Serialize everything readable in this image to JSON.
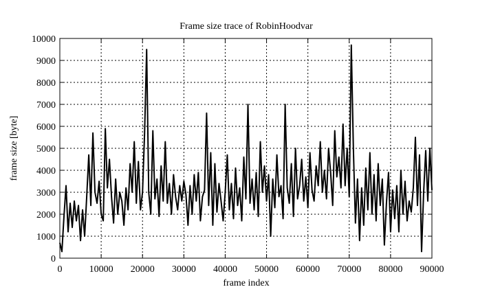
{
  "chart_data": {
    "type": "line",
    "title": "Frame size trace of RobinHoodvar",
    "xlabel": "frame index",
    "ylabel": "frame size [byte]",
    "x": [
      0,
      500,
      1000,
      1500,
      2000,
      2500,
      3000,
      3500,
      4000,
      4500,
      5000,
      5500,
      6000,
      6500,
      7000,
      7500,
      8000,
      8500,
      9000,
      9500,
      10000,
      10500,
      11000,
      11500,
      12000,
      12500,
      13000,
      13500,
      14000,
      14500,
      15000,
      15500,
      16000,
      16500,
      17000,
      17500,
      18000,
      18500,
      19000,
      19500,
      20000,
      20500,
      21000,
      21500,
      22000,
      22500,
      23000,
      23500,
      24000,
      24500,
      25000,
      25500,
      26000,
      26500,
      27000,
      27500,
      28000,
      28500,
      29000,
      29500,
      30000,
      30500,
      31000,
      31500,
      32000,
      32500,
      33000,
      33500,
      34000,
      34500,
      35000,
      35500,
      36000,
      36500,
      37000,
      37500,
      38000,
      38500,
      39000,
      39500,
      40000,
      40500,
      41000,
      41500,
      42000,
      42500,
      43000,
      43500,
      44000,
      44500,
      45000,
      45500,
      46000,
      46500,
      47000,
      47500,
      48000,
      48500,
      49000,
      49500,
      50000,
      50500,
      51000,
      51500,
      52000,
      52500,
      53000,
      53500,
      54000,
      54500,
      55000,
      55500,
      56000,
      56500,
      57000,
      57500,
      58000,
      58500,
      59000,
      59500,
      60000,
      60500,
      61000,
      61500,
      62000,
      62500,
      63000,
      63500,
      64000,
      64500,
      65000,
      65500,
      66000,
      66500,
      67000,
      67500,
      68000,
      68500,
      69000,
      69500,
      70000,
      70500,
      71000,
      71500,
      72000,
      72500,
      73000,
      73500,
      74000,
      74500,
      75000,
      75500,
      76000,
      76500,
      77000,
      77500,
      78000,
      78500,
      79000,
      79500,
      80000,
      80500,
      81000,
      81500,
      82000,
      82500,
      83000,
      83500,
      84000,
      84500,
      85000,
      85500,
      86000,
      86500,
      87000,
      87500,
      88000,
      88500,
      89000,
      89500,
      90000
    ],
    "values": [
      700,
      300,
      1900,
      3300,
      1200,
      2500,
      1400,
      2600,
      1700,
      2400,
      800,
      2200,
      1000,
      2800,
      4700,
      2400,
      5700,
      3000,
      2500,
      3500,
      2000,
      1700,
      5900,
      3200,
      4500,
      2800,
      1600,
      3600,
      2000,
      3000,
      2600,
      1500,
      3200,
      2200,
      4300,
      3000,
      5300,
      2500,
      4400,
      2200,
      3000,
      5700,
      9500,
      3000,
      2000,
      5800,
      2700,
      3600,
      1900,
      4200,
      2600,
      5300,
      2500,
      3400,
      2000,
      3800,
      2800,
      2200,
      3300,
      2600,
      3500,
      2900,
      1500,
      3300,
      2000,
      3800,
      2600,
      3900,
      1700,
      2800,
      3100,
      6600,
      2400,
      4800,
      1500,
      4300,
      2100,
      3400,
      2600,
      1700,
      3000,
      4700,
      2200,
      3400,
      1800,
      4100,
      2400,
      3200,
      1700,
      4600,
      2700,
      7000,
      2500,
      3600,
      2200,
      3900,
      1900,
      5300,
      3000,
      4200,
      2600,
      3800,
      1000,
      3600,
      2300,
      4700,
      2800,
      3300,
      1800,
      7000,
      3200,
      2500,
      4300,
      1900,
      5000,
      2700,
      3300,
      4500,
      2600,
      3700,
      2300,
      4800,
      3100,
      2600,
      4200,
      3300,
      5300,
      3000,
      4000,
      2700,
      5000,
      3900,
      2400,
      5800,
      3700,
      4600,
      3200,
      6100,
      3300,
      5000,
      2800,
      9700,
      5000,
      1600,
      3600,
      800,
      3200,
      1500,
      4100,
      2200,
      4800,
      2000,
      3800,
      1700,
      4300,
      2400,
      3600,
      600,
      2500,
      3900,
      1200,
      3100,
      1800,
      3300,
      1200,
      4000,
      2000,
      3500,
      1700,
      2600,
      2100,
      3200,
      5500,
      2400,
      4700,
      300,
      3000,
      4900,
      2600,
      5000,
      3100
    ],
    "color": "#000000",
    "xlim": [
      0,
      90000
    ],
    "ylim": [
      0,
      10000
    ],
    "xticks": [
      0,
      10000,
      20000,
      30000,
      40000,
      50000,
      60000,
      70000,
      80000,
      90000
    ],
    "yticks": [
      0,
      1000,
      2000,
      3000,
      4000,
      5000,
      6000,
      7000,
      8000,
      9000,
      10000
    ],
    "grid": true
  }
}
